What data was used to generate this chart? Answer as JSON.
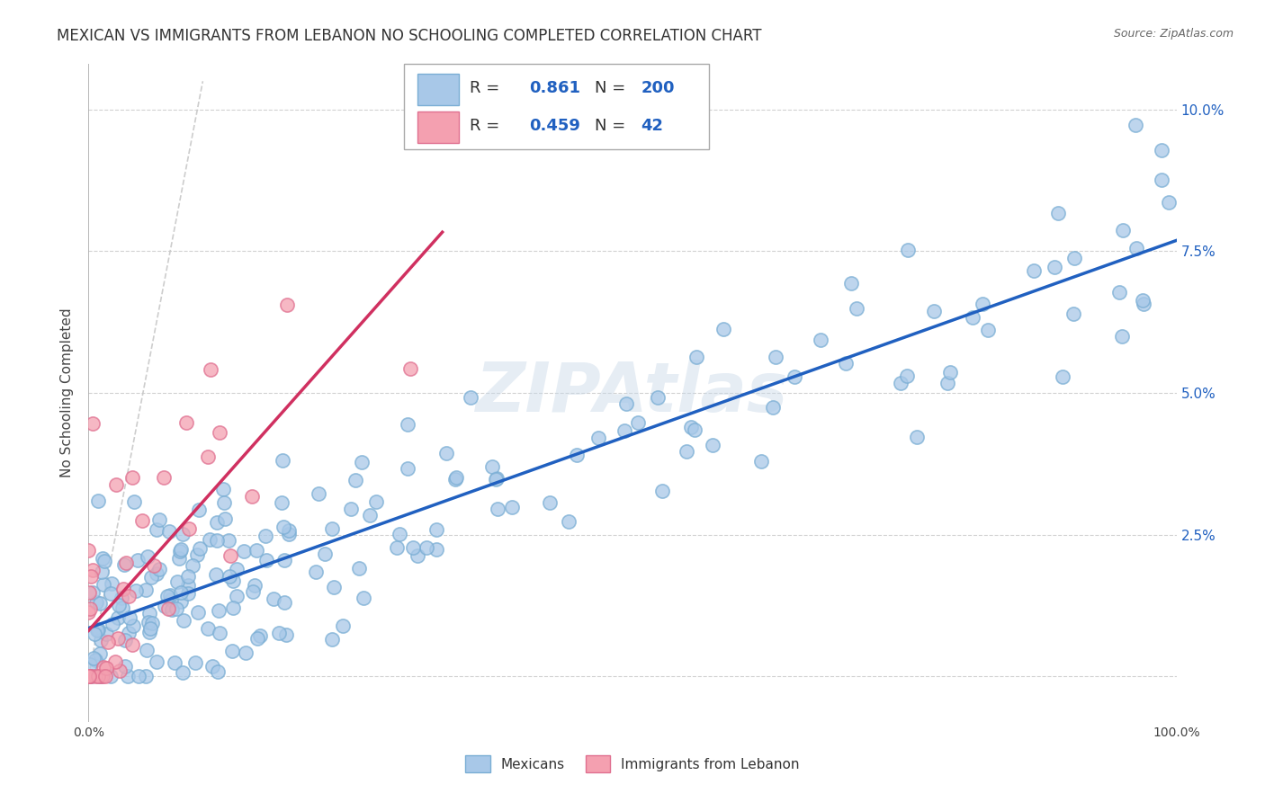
{
  "title": "MEXICAN VS IMMIGRANTS FROM LEBANON NO SCHOOLING COMPLETED CORRELATION CHART",
  "source": "Source: ZipAtlas.com",
  "ylabel": "No Schooling Completed",
  "xlim": [
    0,
    1.0
  ],
  "ylim": [
    -0.008,
    0.108
  ],
  "xticks": [
    0.0,
    0.1,
    0.2,
    0.3,
    0.4,
    0.5,
    0.6,
    0.7,
    0.8,
    0.9,
    1.0
  ],
  "yticks": [
    0.0,
    0.025,
    0.05,
    0.075,
    0.1
  ],
  "xtick_labels": [
    "0.0%",
    "",
    "",
    "",
    "",
    "",
    "",
    "",
    "",
    "",
    "100.0%"
  ],
  "ytick_labels": [
    "",
    "2.5%",
    "5.0%",
    "7.5%",
    "10.0%"
  ],
  "blue_color": "#a8c8e8",
  "blue_edge": "#7aaed4",
  "pink_color": "#f4a0b0",
  "pink_edge": "#e07090",
  "line_blue": "#2060c0",
  "line_pink": "#d03060",
  "diag_color": "#c8c8c8",
  "legend_blue_R": "0.861",
  "legend_blue_N": "200",
  "legend_pink_R": "0.459",
  "legend_pink_N": "42",
  "watermark": "ZIPAtlas",
  "title_fontsize": 12,
  "axis_fontsize": 10,
  "tick_fontsize": 10,
  "legend_fontsize": 13,
  "tick_color": "#2060c0",
  "R_N_color": "#2060c0",
  "blue_seed": 42,
  "pink_seed": 7,
  "N_blue": 200,
  "N_pink": 42
}
